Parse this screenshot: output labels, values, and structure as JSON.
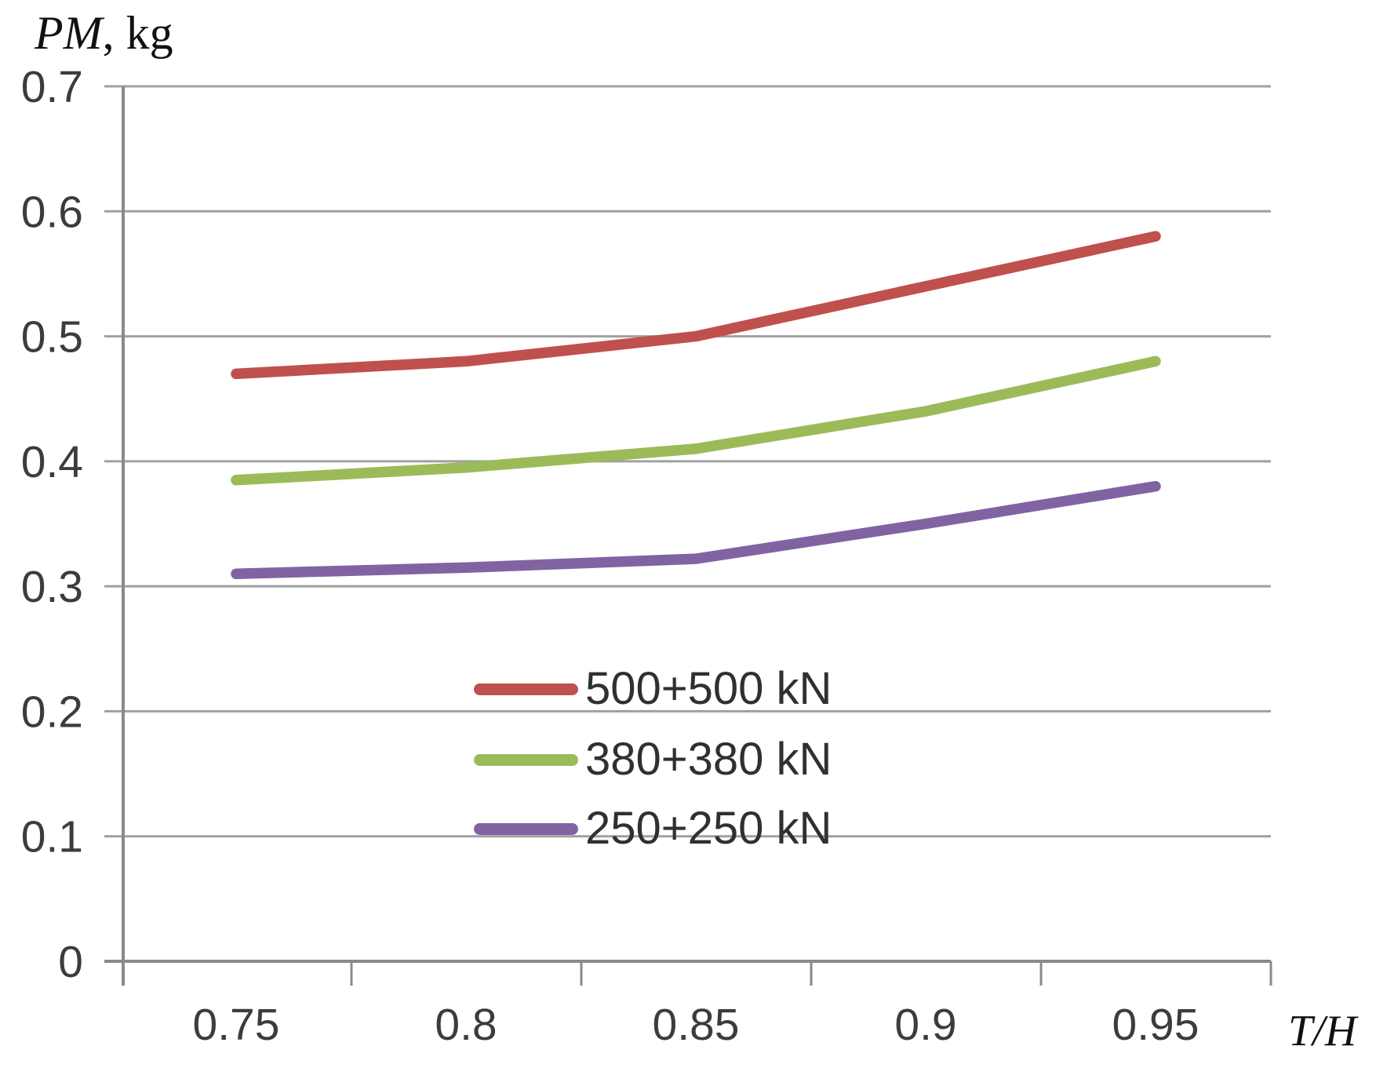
{
  "chart_data": {
    "type": "line",
    "title": "",
    "ylabel_italic": "PM",
    "ylabel_rest": ", kg",
    "xlabel": "T/H",
    "categories": [
      "0.75",
      "0.8",
      "0.85",
      "0.9",
      "0.95"
    ],
    "x_values": [
      0.75,
      0.8,
      0.85,
      0.9,
      0.95
    ],
    "y_tick_labels": [
      "0",
      "0.1",
      "0.2",
      "0.3",
      "0.4",
      "0.5",
      "0.6",
      "0.7"
    ],
    "y_tick_values": [
      0,
      0.1,
      0.2,
      0.3,
      0.4,
      0.5,
      0.6,
      0.7
    ],
    "ylim": [
      0,
      0.7
    ],
    "grid": true,
    "legend_position": "inside-center",
    "series": [
      {
        "name": "500+500 kN",
        "color": "#C0504D",
        "values": [
          0.47,
          0.48,
          0.5,
          0.54,
          0.58
        ]
      },
      {
        "name": "380+380 kN",
        "color": "#9BBB59",
        "values": [
          0.385,
          0.395,
          0.41,
          0.44,
          0.48
        ]
      },
      {
        "name": "250+250 kN",
        "color": "#8064A2",
        "values": [
          0.31,
          0.315,
          0.322,
          0.35,
          0.38
        ]
      }
    ],
    "colors": {
      "gridline": "#a0a0a0",
      "axis": "#8a8a8a",
      "tick_text": "#3c3c3c"
    }
  }
}
